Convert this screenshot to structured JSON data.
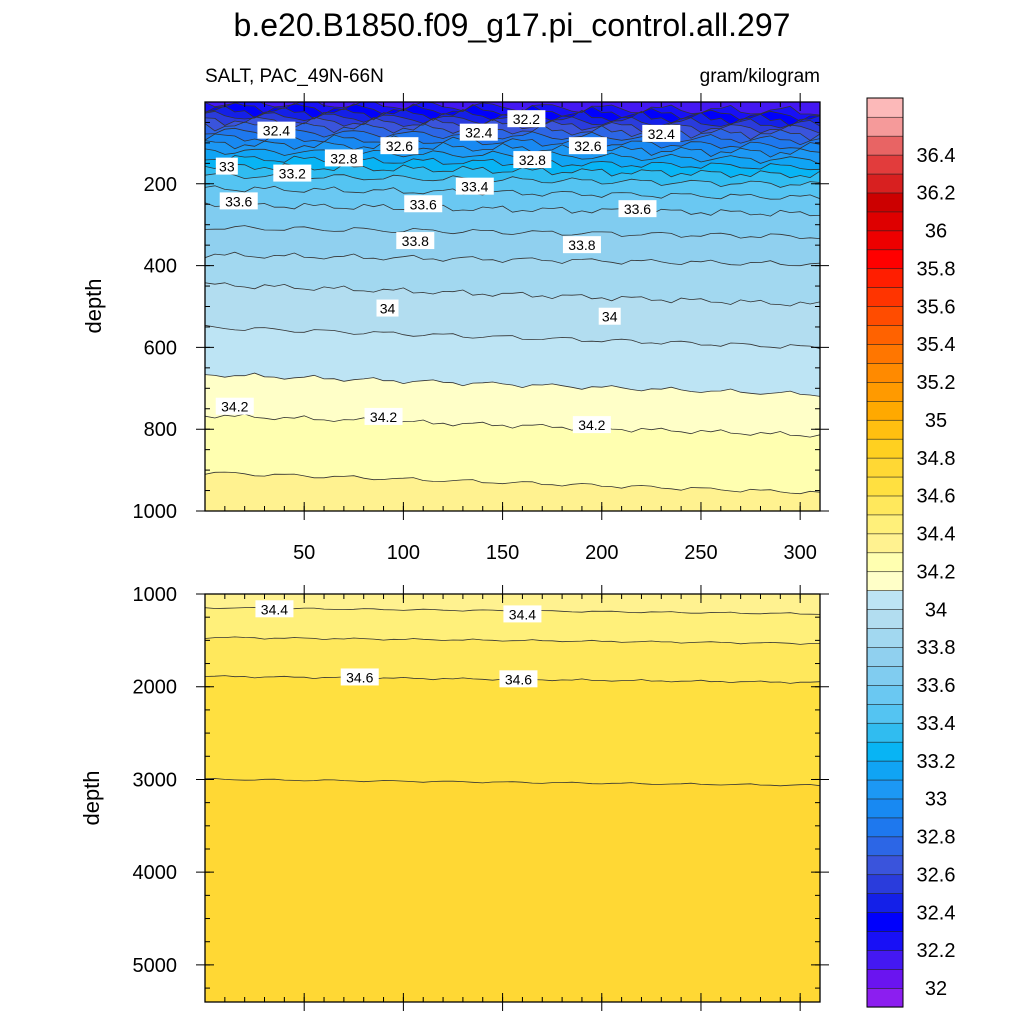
{
  "chart_data": {
    "type": "heatmap",
    "title": "b.e20.B1850.f09_g17.pi_control.all.297",
    "variable_label": "SALT, PAC_49N-66N",
    "units": "gram/kilogram",
    "colorbar": {
      "levels": [
        31.9,
        32.0,
        32.1,
        32.2,
        32.3,
        32.4,
        32.5,
        32.6,
        32.7,
        32.8,
        32.9,
        33.0,
        33.1,
        33.2,
        33.3,
        33.4,
        33.5,
        33.6,
        33.7,
        33.8,
        33.9,
        34.0,
        34.1,
        34.2,
        34.3,
        34.4,
        34.5,
        34.6,
        34.7,
        34.8,
        34.9,
        35.0,
        35.1,
        35.2,
        35.3,
        35.4,
        35.5,
        35.6,
        35.7,
        35.8,
        35.9,
        36.0,
        36.1,
        36.2,
        36.3,
        36.4,
        36.5,
        36.6
      ],
      "tick_labels": [
        "32",
        "32.2",
        "32.4",
        "32.6",
        "32.8",
        "33",
        "33.2",
        "33.4",
        "33.6",
        "33.8",
        "34",
        "34.2",
        "34.4",
        "34.6",
        "34.8",
        "35",
        "35.2",
        "35.4",
        "35.6",
        "35.8",
        "36",
        "36.2",
        "36.4"
      ],
      "colors": [
        "#8c1ef0",
        "#6a14f0",
        "#4418f2",
        "#1810f6",
        "#0000fc",
        "#1420e8",
        "#2a3cdc",
        "#3a54dc",
        "#2c66e6",
        "#1e78ee",
        "#1889f2",
        "#1c98f4",
        "#10a4f4",
        "#08b4f4",
        "#30bcf0",
        "#54c4f2",
        "#6ac8f2",
        "#80ccf0",
        "#90d0ef",
        "#a2d8f0",
        "#b2ddf0",
        "#bde4f4",
        "#ffffc8",
        "#ffffb0",
        "#fff290",
        "#fff07a",
        "#ffe85c",
        "#ffe040",
        "#ffd834",
        "#ffd020",
        "#ffbf10",
        "#ffa900",
        "#ff9a00",
        "#ff8a00",
        "#ff7600",
        "#ff6200",
        "#ff4c00",
        "#ff3400",
        "#ff1e00",
        "#ff0000",
        "#ee0000",
        "#de0000",
        "#cc0000",
        "#d82020",
        "#e23c3c",
        "#e86464",
        "#f59a9a",
        "#fcb9b9"
      ]
    },
    "panels": [
      {
        "xlim": [
          0,
          310
        ],
        "ylim": [
          0,
          1000
        ],
        "ylabel": "depth",
        "xticks": [
          50,
          100,
          150,
          200,
          250,
          300
        ],
        "yticks": [
          200,
          400,
          600,
          800,
          1000
        ],
        "contours": [
          {
            "level": 32.2,
            "depth": 12
          },
          {
            "level": 32.3,
            "depth": 22
          },
          {
            "level": 32.4,
            "depth": 33
          },
          {
            "level": 32.5,
            "depth": 44
          },
          {
            "level": 32.6,
            "depth": 55
          },
          {
            "level": 32.7,
            "depth": 68
          },
          {
            "level": 32.8,
            "depth": 82
          },
          {
            "level": 32.9,
            "depth": 97
          },
          {
            "level": 33.0,
            "depth": 113
          },
          {
            "level": 33.1,
            "depth": 130
          },
          {
            "level": 33.2,
            "depth": 148
          },
          {
            "level": 33.3,
            "depth": 167
          },
          {
            "level": 33.4,
            "depth": 190
          },
          {
            "level": 33.5,
            "depth": 222
          },
          {
            "level": 33.6,
            "depth": 262
          },
          {
            "level": 33.7,
            "depth": 318
          },
          {
            "level": 33.8,
            "depth": 385
          },
          {
            "level": 33.9,
            "depth": 470
          },
          {
            "level": 34.0,
            "depth": 575
          },
          {
            "level": 34.1,
            "depth": 690
          },
          {
            "level": 34.2,
            "depth": 790
          },
          {
            "level": 34.3,
            "depth": 930
          }
        ],
        "contour_labels": [
          {
            "text": "32.2",
            "x": 162,
            "y": 42
          },
          {
            "text": "32.4",
            "x": 36,
            "y": 70
          },
          {
            "text": "32.4",
            "x": 138,
            "y": 75
          },
          {
            "text": "32.4",
            "x": 230,
            "y": 78
          },
          {
            "text": "32.6",
            "x": 98,
            "y": 108
          },
          {
            "text": "32.6",
            "x": 193,
            "y": 108
          },
          {
            "text": "32.8",
            "x": 70,
            "y": 138
          },
          {
            "text": "32.8",
            "x": 165,
            "y": 142
          },
          {
            "text": "33",
            "x": 11,
            "y": 158
          },
          {
            "text": "33.2",
            "x": 44,
            "y": 175
          },
          {
            "text": "33.4",
            "x": 136,
            "y": 207
          },
          {
            "text": "33.6",
            "x": 17,
            "y": 243
          },
          {
            "text": "33.6",
            "x": 110,
            "y": 250
          },
          {
            "text": "33.6",
            "x": 218,
            "y": 262
          },
          {
            "text": "33.8",
            "x": 106,
            "y": 340
          },
          {
            "text": "33.8",
            "x": 190,
            "y": 350
          },
          {
            "text": "34",
            "x": 92,
            "y": 505
          },
          {
            "text": "34",
            "x": 204,
            "y": 525
          },
          {
            "text": "34.2",
            "x": 15,
            "y": 745
          },
          {
            "text": "34.2",
            "x": 90,
            "y": 770
          },
          {
            "text": "34.2",
            "x": 195,
            "y": 790
          }
        ]
      },
      {
        "xlim": [
          0,
          310
        ],
        "ylim": [
          1000,
          5400
        ],
        "ylabel": "depth",
        "yticks": [
          1000,
          2000,
          3000,
          4000,
          5000
        ],
        "contours": [
          {
            "level": 34.4,
            "depth": 1180
          },
          {
            "level": 34.5,
            "depth": 1500
          },
          {
            "level": 34.6,
            "depth": 1920
          },
          {
            "level": 34.7,
            "depth": 3030
          }
        ],
        "contour_labels": [
          {
            "text": "34.4",
            "x": 35,
            "y": 1165
          },
          {
            "text": "34.4",
            "x": 160,
            "y": 1220
          },
          {
            "text": "34.6",
            "x": 78,
            "y": 1900
          },
          {
            "text": "34.6",
            "x": 158,
            "y": 1920
          }
        ]
      }
    ]
  }
}
